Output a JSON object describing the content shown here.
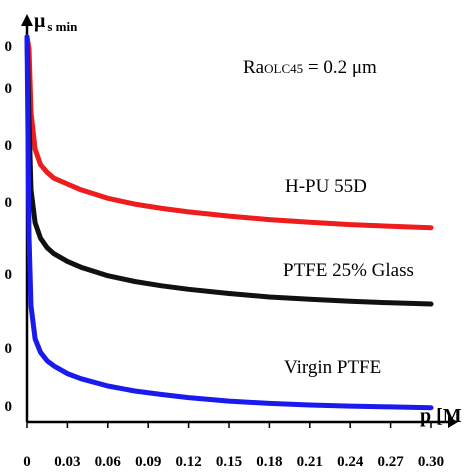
{
  "chart_data": {
    "type": "line",
    "xlabel": "p [M",
    "ylabel_main": "μ",
    "ylabel_sub": "s min",
    "x_ticks": [
      "0",
      "0.03",
      "0.06",
      "0.09",
      "0.12",
      "0.15",
      "0.18",
      "0.21",
      "0.24",
      "0.27",
      "0.30"
    ],
    "x_tick_values": [
      0,
      0.03,
      0.06,
      0.09,
      0.12,
      0.15,
      0.18,
      0.21,
      0.24,
      0.27,
      0.3
    ],
    "y_tick_labels": [
      "0",
      "0",
      "0",
      "0",
      "0",
      "0",
      "0"
    ],
    "xlim": [
      0,
      0.3
    ],
    "ylim": [
      0,
      1
    ],
    "annotations": [
      {
        "text_main": "Ra",
        "text_sub": "OLC45",
        "text_tail": " = 0.2 μm"
      }
    ],
    "grid": false,
    "legend": "none",
    "series": [
      {
        "name": "H-PU 55D",
        "color": "#ee1c1c",
        "x": [
          0.0015,
          0.003,
          0.006,
          0.01,
          0.015,
          0.02,
          0.03,
          0.04,
          0.06,
          0.08,
          0.1,
          0.12,
          0.15,
          0.18,
          0.21,
          0.24,
          0.27,
          0.3
        ],
        "values": [
          0.965,
          0.8,
          0.705,
          0.665,
          0.645,
          0.63,
          0.615,
          0.6,
          0.578,
          0.563,
          0.552,
          0.543,
          0.532,
          0.523,
          0.516,
          0.51,
          0.506,
          0.502
        ]
      },
      {
        "name": "PTFE 25% Glass",
        "color": "#111111",
        "x": [
          0.0015,
          0.003,
          0.006,
          0.01,
          0.015,
          0.02,
          0.03,
          0.04,
          0.06,
          0.08,
          0.1,
          0.12,
          0.15,
          0.18,
          0.21,
          0.24,
          0.27,
          0.3
        ],
        "values": [
          0.78,
          0.6,
          0.515,
          0.475,
          0.45,
          0.435,
          0.415,
          0.4,
          0.378,
          0.363,
          0.352,
          0.343,
          0.332,
          0.323,
          0.317,
          0.312,
          0.308,
          0.305
        ]
      },
      {
        "name": "Virgin PTFE",
        "color": "#1a1aee",
        "x": [
          0.0015,
          0.003,
          0.006,
          0.01,
          0.015,
          0.02,
          0.03,
          0.04,
          0.06,
          0.08,
          0.1,
          0.12,
          0.15,
          0.18,
          0.21,
          0.24,
          0.27,
          0.3
        ],
        "values": [
          0.48,
          0.3,
          0.215,
          0.18,
          0.158,
          0.145,
          0.125,
          0.112,
          0.093,
          0.08,
          0.071,
          0.063,
          0.054,
          0.048,
          0.044,
          0.041,
          0.039,
          0.037
        ]
      }
    ]
  }
}
